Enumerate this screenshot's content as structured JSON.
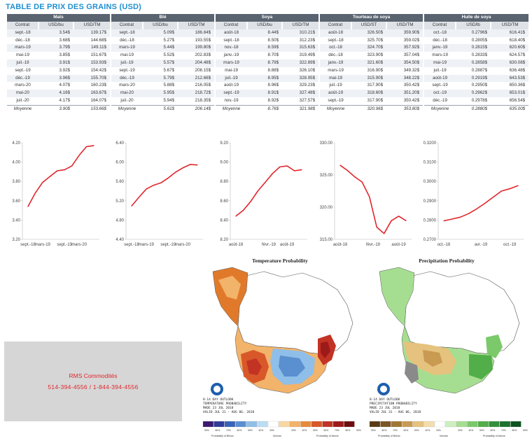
{
  "title": "TABLE DE PRIX DES GRAINS (USD)",
  "groups": [
    {
      "name": "Maïs",
      "headers": [
        "Contrat",
        "USD/bu",
        "USD/TM"
      ],
      "rows": [
        [
          "sept.-18",
          "3.54$",
          "139.17$"
        ],
        [
          "déc.-18",
          "3.68$",
          "144.68$"
        ],
        [
          "mars-19",
          "3.79$",
          "149.11$"
        ],
        [
          "mai-19",
          "3.85$",
          "151.67$"
        ],
        [
          "juil.-19",
          "3.91$",
          "153.93$"
        ],
        [
          "sept.-19",
          "3.92$",
          "154.42$"
        ],
        [
          "déc.-19",
          "3.96$",
          "155.70$"
        ],
        [
          "mars-20",
          "4.07$",
          "160.23$"
        ],
        [
          "mai-20",
          "4.16$",
          "163.67$"
        ],
        [
          "juil.-20",
          "4.17$",
          "164.07$"
        ]
      ],
      "avg": [
        "Moyenne",
        "3.90$",
        "153.66$"
      ]
    },
    {
      "name": "Blé",
      "headers": [
        "Contrat",
        "USD/bu",
        "USD/TM"
      ],
      "rows": [
        [
          "sept.-18",
          "5.09$",
          "186.84$"
        ],
        [
          "déc.-18",
          "5.27$",
          "193.55$"
        ],
        [
          "mars-19",
          "5.44$",
          "199.80$"
        ],
        [
          "mai-19",
          "5.52$",
          "202.83$"
        ],
        [
          "juil.-19",
          "5.57$",
          "204.48$"
        ],
        [
          "sept.-19",
          "5.67$",
          "208.15$"
        ],
        [
          "déc.-19",
          "5.79$",
          "212.66$"
        ],
        [
          "mars-20",
          "5.88$",
          "216.05$"
        ],
        [
          "mai-20",
          "5.95$",
          "218.72$"
        ],
        [
          "juil.-20",
          "5.94$",
          "218.35$"
        ]
      ],
      "avg": [
        "Moyenne",
        "5.61$",
        "206.14$"
      ]
    },
    {
      "name": "Soya",
      "headers": [
        "Contrat",
        "USD/bu",
        "USD/TM"
      ],
      "rows": [
        [
          "août-18",
          "8.44$",
          "310.21$"
        ],
        [
          "sept.-18",
          "8.50$",
          "312.23$"
        ],
        [
          "nov.-18",
          "8.59$",
          "315.63$"
        ],
        [
          "janv.-19",
          "8.70$",
          "319.49$"
        ],
        [
          "mars-19",
          "8.79$",
          "322.89$"
        ],
        [
          "mai-19",
          "8.88$",
          "326.10$"
        ],
        [
          "juil.-19",
          "8.95$",
          "328.95$"
        ],
        [
          "août-19",
          "8.96$",
          "329.23$"
        ],
        [
          "sept.-19",
          "8.91$",
          "327.48$"
        ],
        [
          "nov.-19",
          "8.92$",
          "327.57$"
        ]
      ],
      "avg": [
        "Moyenne",
        "8.76$",
        "321.98$"
      ]
    },
    {
      "name": "Tourteau de soya",
      "headers": [
        "Contrat",
        "USD/ST",
        "USD/TM"
      ],
      "rows": [
        [
          "août-18",
          "326.50$",
          "359.90$"
        ],
        [
          "sept.-18",
          "325.70$",
          "359.02$"
        ],
        [
          "oct.-18",
          "324.70$",
          "357.92$"
        ],
        [
          "déc.-18",
          "323.90$",
          "357.04$"
        ],
        [
          "janv.-19",
          "321.60$",
          "354.50$"
        ],
        [
          "mars-19",
          "316.90$",
          "349.32$"
        ],
        [
          "mai-19",
          "315.90$",
          "348.22$"
        ],
        [
          "juil.-19",
          "317.90$",
          "350.42$"
        ],
        [
          "août-19",
          "318.60$",
          "351.20$"
        ],
        [
          "sept.-19",
          "317.90$",
          "350.42$"
        ]
      ],
      "avg": [
        "Moyenne",
        "320.96$",
        "353.80$"
      ]
    },
    {
      "name": "Huile de soya",
      "headers": [
        "Contrat",
        "USD/lb",
        "USD/TM"
      ],
      "rows": [
        [
          "oct.-18",
          "0.2796$",
          "616.41$"
        ],
        [
          "déc.-18",
          "0.2805$",
          "618.40$"
        ],
        [
          "janv.-19",
          "0.2815$",
          "620.60$"
        ],
        [
          "mars-19",
          "0.2833$",
          "624.57$"
        ],
        [
          "mai-19",
          "0.2858$",
          "630.08$"
        ],
        [
          "juil.-19",
          "0.2887$",
          "636.48$"
        ],
        [
          "août-19",
          "0.2919$",
          "643.53$"
        ],
        [
          "sept.-19",
          "0.2950$",
          "650.36$"
        ],
        [
          "oct.-19",
          "0.2962$",
          "653.01$"
        ],
        [
          "déc.-19",
          "0.2978$",
          "656.54$"
        ]
      ],
      "avg": [
        "Moyenne",
        "0.2880$",
        "635.00$"
      ]
    }
  ],
  "chart_data": [
    {
      "type": "line",
      "x": [
        "sept.-18",
        "déc.-18",
        "mars-19",
        "mai-19",
        "juil.-19",
        "sept.-19",
        "déc.-19",
        "mars-20",
        "mai-20",
        "juil.-20"
      ],
      "series": [
        {
          "values": [
            3.54,
            3.68,
            3.79,
            3.85,
            3.91,
            3.92,
            3.96,
            4.07,
            4.16,
            4.17
          ]
        }
      ],
      "yticks": [
        "4.20",
        "4.00",
        "3.80",
        "3.60",
        "3.40",
        "3.20"
      ],
      "ylim": [
        3.2,
        4.2
      ],
      "xticks": [
        "sept.-18",
        "mars-19",
        "sept.-19",
        "mars-20"
      ],
      "color": "#e0262b"
    },
    {
      "type": "line",
      "x": [
        "sept.-18",
        "déc.-18",
        "mars-19",
        "mai-19",
        "juil.-19",
        "sept.-19",
        "déc.-19",
        "mars-20",
        "mai-20",
        "juil.-20"
      ],
      "series": [
        {
          "values": [
            5.09,
            5.27,
            5.44,
            5.52,
            5.57,
            5.67,
            5.79,
            5.88,
            5.95,
            5.94
          ]
        }
      ],
      "yticks": [
        "6.40",
        "6.00",
        "5.60",
        "5.20",
        "4.80",
        "4.40"
      ],
      "ylim": [
        4.4,
        6.4
      ],
      "xticks": [
        "sept.-18",
        "mars-19",
        "sept.-19",
        "mars-20"
      ],
      "color": "#e0262b"
    },
    {
      "type": "line",
      "x": [
        "août-18",
        "sept.-18",
        "nov.-18",
        "janv.-19",
        "mars-19",
        "mai-19",
        "juil.-19",
        "août-19",
        "sept.-19",
        "nov.-19"
      ],
      "series": [
        {
          "values": [
            8.44,
            8.5,
            8.59,
            8.7,
            8.79,
            8.88,
            8.95,
            8.96,
            8.91,
            8.92
          ]
        }
      ],
      "yticks": [
        "9.20",
        "9.00",
        "8.80",
        "8.60",
        "8.40",
        "8.20"
      ],
      "ylim": [
        8.2,
        9.2
      ],
      "xticks": [
        "août-18",
        "févr.-19",
        "août-19"
      ],
      "color": "#e0262b"
    },
    {
      "type": "line",
      "x": [
        "août-18",
        "sept.-18",
        "oct.-18",
        "déc.-18",
        "janv.-19",
        "mars-19",
        "mai-19",
        "juil.-19",
        "août-19",
        "sept.-19"
      ],
      "series": [
        {
          "values": [
            326.5,
            325.7,
            324.7,
            323.9,
            321.6,
            316.9,
            315.9,
            317.9,
            318.6,
            317.9
          ]
        }
      ],
      "yticks": [
        "330.00",
        "325.00",
        "320.00",
        "315.00"
      ],
      "ylim": [
        315,
        330
      ],
      "xticks": [
        "août-18",
        "févr.-19",
        "août-19"
      ],
      "color": "#e0262b"
    },
    {
      "type": "line",
      "x": [
        "oct.-18",
        "déc.-18",
        "janv.-19",
        "mars-19",
        "mai-19",
        "juil.-19",
        "août-19",
        "sept.-19",
        "oct.-19",
        "déc.-19"
      ],
      "series": [
        {
          "values": [
            0.2796,
            0.2805,
            0.2815,
            0.2833,
            0.2858,
            0.2887,
            0.2919,
            0.295,
            0.2962,
            0.2978
          ]
        }
      ],
      "yticks": [
        "0.3200",
        "0.3100",
        "0.3000",
        "0.2900",
        "0.2800",
        "0.2700"
      ],
      "ylim": [
        0.27,
        0.32
      ],
      "xticks": [
        "oct.-18",
        "avr.-19",
        "oct.-19"
      ],
      "color": "#e0262b"
    }
  ],
  "maps": {
    "temp_title": "Temperature Probability",
    "precip_title": "Precipitation Probability",
    "temp_caption": [
      "8-14 DAY OUTLOOK",
      "TEMPERATURE PROBABILITY",
      "MADE 23 JUL 2018",
      "VALID JUL 31 - AUG 06, 2018"
    ],
    "precip_caption": [
      "8-14 DAY OUTLOOK",
      "PRECIPITATION PROBABILITY",
      "MADE 23 JUL 2018",
      "VALID JUL 31 - AUG 06, 2018"
    ],
    "temp_legend_left": "Probability of Below",
    "temp_legend_mid": "Normal",
    "temp_legend_right": "Probability of Above",
    "precip_legend_left": "Probability of Below",
    "precip_legend_mid": "Normal",
    "precip_legend_right": "Probability of Above",
    "temp_colors": [
      "#3b1a70",
      "#2f3c99",
      "#3a62b8",
      "#5a8fd0",
      "#8fbfe8",
      "#bcdcf3",
      "#ffffff",
      "#f7d7a3",
      "#f2b36a",
      "#e88a3c",
      "#d8582a",
      "#c23324",
      "#9d1a1a",
      "#6e0d0d"
    ],
    "precip_colors": [
      "#5a3a14",
      "#7a5524",
      "#a17634",
      "#c99a52",
      "#e5c27d",
      "#f3ddaa",
      "#ffffff",
      "#cfeec0",
      "#a6de91",
      "#7bc96a",
      "#52ae48",
      "#33903a",
      "#1f712f",
      "#0f5222"
    ],
    "scale": [
      "90%",
      "80%",
      "70%",
      "60%",
      "50%",
      "40%",
      "33%",
      "",
      "33%",
      "40%",
      "50%",
      "60%",
      "70%",
      "80%",
      "90%"
    ]
  },
  "contact": {
    "name": "RMS Commodités",
    "phone": "514-394-4556 / 1-844-394-4556"
  }
}
